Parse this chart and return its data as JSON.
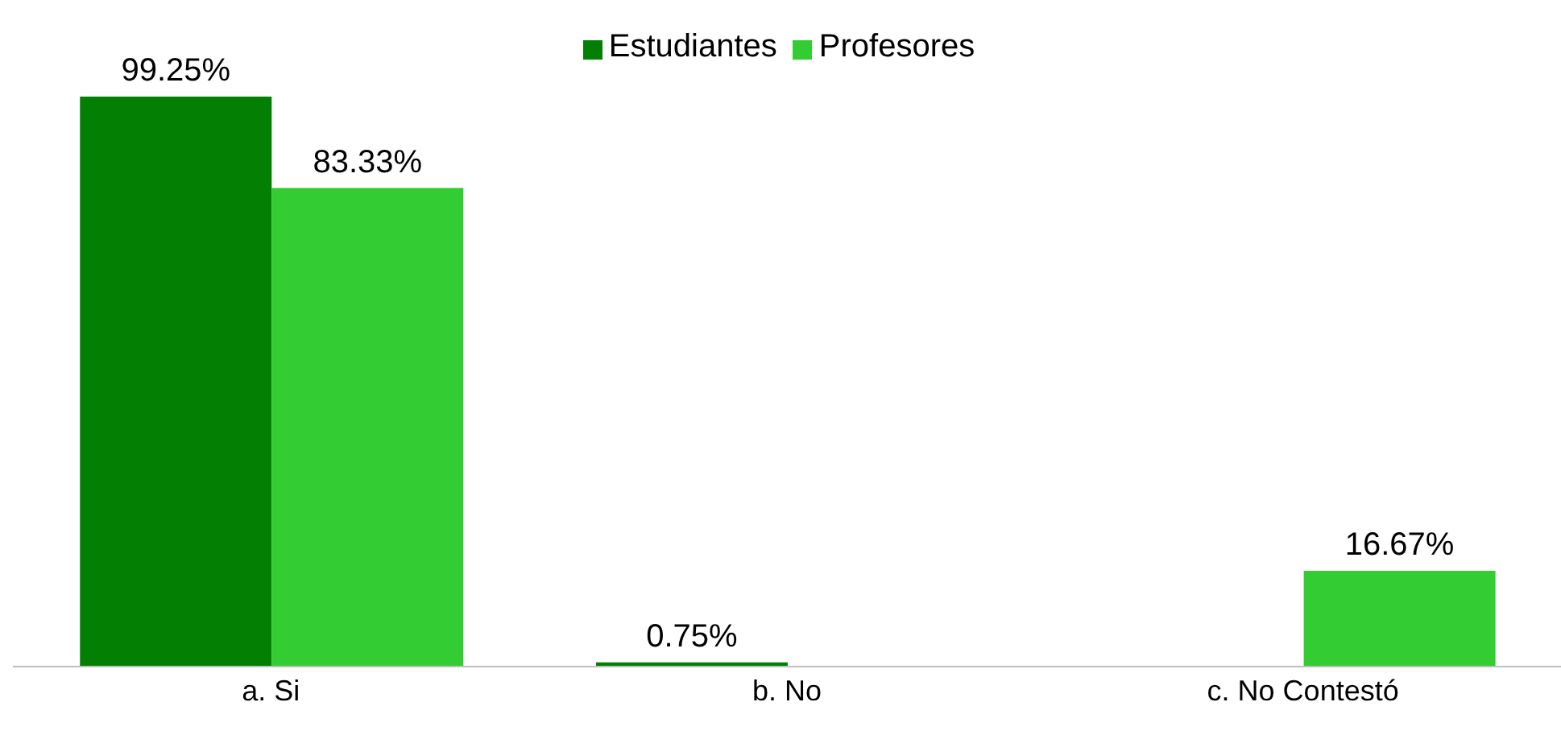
{
  "chart_data": {
    "type": "bar",
    "categories": [
      "a. Si",
      "b. No",
      "c. No Contestó"
    ],
    "series": [
      {
        "name": "Estudiantes",
        "color": "#037f03",
        "values": [
          99.25,
          0.75,
          0
        ],
        "value_labels": [
          "99.25%",
          "0.75%",
          null
        ]
      },
      {
        "name": "Profesores",
        "color": "#33cc33",
        "values": [
          83.33,
          0,
          16.67
        ],
        "value_labels": [
          "83.33%",
          null,
          "16.67%"
        ]
      }
    ],
    "legend": "top",
    "grid": false
  }
}
